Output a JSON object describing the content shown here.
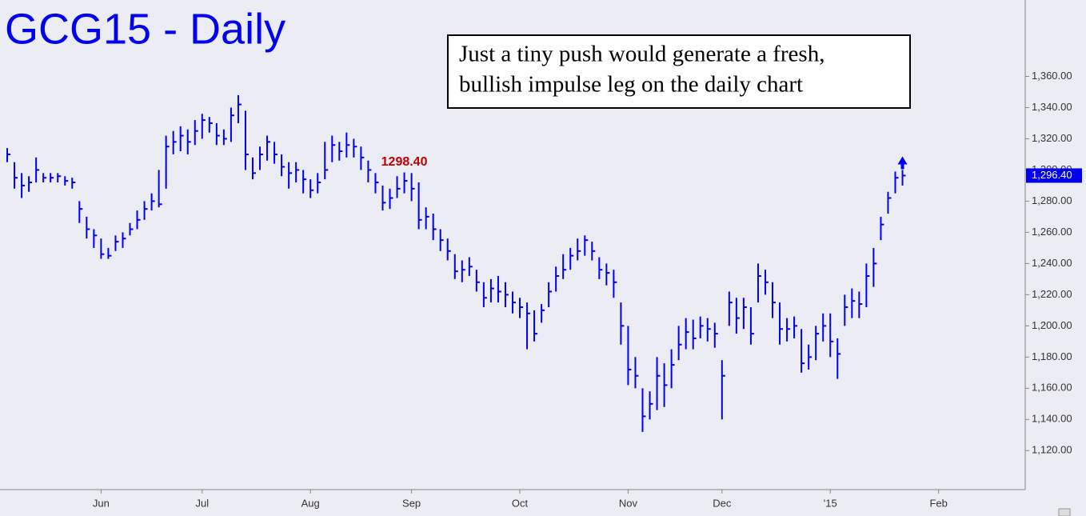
{
  "chart_data": {
    "type": "ohlc",
    "title": "GCG15 - Daily",
    "annotation_box": [
      "Just a tiny push would generate a fresh,",
      "bullish impulse leg on the daily chart"
    ],
    "color": "#0000ee",
    "high": [
      1314,
      1305,
      1298,
      1296,
      1308,
      1298,
      1298,
      1298,
      1296,
      1295,
      1280,
      1270,
      1262,
      1256,
      1250,
      1258,
      1260,
      1266,
      1274,
      1280,
      1285,
      1300,
      1322,
      1325,
      1328,
      1326,
      1332,
      1336,
      1334,
      1330,
      1326,
      1340,
      1348,
      1338,
      1308,
      1315,
      1322,
      1318,
      1310,
      1305,
      1305,
      1300,
      1294,
      1298,
      1318,
      1322,
      1318,
      1324,
      1320,
      1315,
      1306,
      1298,
      1290,
      1288,
      1296,
      1298.4,
      1298,
      1292,
      1276,
      1272,
      1262,
      1256,
      1246,
      1242,
      1244,
      1236,
      1228,
      1230,
      1232,
      1228,
      1222,
      1218,
      1215,
      1210,
      1214,
      1228,
      1238,
      1246,
      1250,
      1256,
      1258,
      1254,
      1244,
      1240,
      1236,
      1215,
      1200,
      1180,
      1160,
      1158,
      1180,
      1176,
      1185,
      1200,
      1205,
      1204,
      1206,
      1205,
      1202,
      1178,
      1222,
      1218,
      1218,
      1212,
      1240,
      1236,
      1228,
      1215,
      1205,
      1206,
      1198,
      1188,
      1200,
      1208,
      1208,
      1192,
      1220,
      1224,
      1222,
      1240,
      1250,
      1270,
      1286,
      1299,
      1300
    ],
    "low": [
      1305,
      1288,
      1282,
      1286,
      1292,
      1292,
      1292,
      1292,
      1290,
      1288,
      1266,
      1256,
      1250,
      1243,
      1243,
      1248,
      1250,
      1258,
      1262,
      1268,
      1274,
      1276,
      1288,
      1310,
      1312,
      1310,
      1316,
      1320,
      1324,
      1316,
      1316,
      1318,
      1330,
      1300,
      1294,
      1300,
      1306,
      1304,
      1296,
      1288,
      1292,
      1285,
      1282,
      1285,
      1294,
      1305,
      1306,
      1308,
      1308,
      1300,
      1292,
      1285,
      1274,
      1275,
      1282,
      1285,
      1280,
      1262,
      1262,
      1255,
      1248,
      1242,
      1230,
      1228,
      1232,
      1222,
      1212,
      1215,
      1215,
      1212,
      1208,
      1205,
      1185,
      1190,
      1202,
      1212,
      1222,
      1230,
      1236,
      1242,
      1245,
      1242,
      1230,
      1226,
      1218,
      1188,
      1162,
      1160,
      1132,
      1140,
      1146,
      1148,
      1160,
      1178,
      1185,
      1185,
      1192,
      1190,
      1186,
      1140,
      1200,
      1195,
      1198,
      1188,
      1215,
      1220,
      1205,
      1188,
      1190,
      1192,
      1170,
      1172,
      1178,
      1190,
      1180,
      1166,
      1200,
      1205,
      1205,
      1212,
      1225,
      1255,
      1272,
      1285,
      1290
    ],
    "close": [
      1310,
      1295,
      1290,
      1292,
      1300,
      1295,
      1295,
      1296,
      1293,
      1292,
      1275,
      1262,
      1258,
      1246,
      1245,
      1254,
      1256,
      1262,
      1268,
      1275,
      1280,
      1278,
      1315,
      1318,
      1322,
      1318,
      1325,
      1332,
      1330,
      1322,
      1320,
      1335,
      1342,
      1310,
      1298,
      1310,
      1318,
      1310,
      1302,
      1298,
      1300,
      1294,
      1287,
      1292,
      1300,
      1316,
      1312,
      1316,
      1315,
      1308,
      1300,
      1292,
      1279,
      1282,
      1288,
      1293,
      1288,
      1268,
      1270,
      1262,
      1255,
      1248,
      1235,
      1236,
      1238,
      1228,
      1218,
      1224,
      1222,
      1220,
      1215,
      1212,
      1208,
      1195,
      1210,
      1222,
      1232,
      1236,
      1245,
      1248,
      1255,
      1248,
      1236,
      1234,
      1228,
      1200,
      1172,
      1168,
      1142,
      1150,
      1168,
      1162,
      1175,
      1188,
      1196,
      1192,
      1200,
      1198,
      1195,
      1168,
      1215,
      1205,
      1212,
      1195,
      1232,
      1228,
      1215,
      1198,
      1198,
      1200,
      1176,
      1180,
      1195,
      1200,
      1190,
      1182,
      1212,
      1216,
      1214,
      1232,
      1240,
      1265,
      1282,
      1295,
      1296.4
    ],
    "annotation": {
      "index": 55,
      "value": 1298.4,
      "label": "1298.40"
    },
    "last_price": {
      "value": 1296.4,
      "label": "1,296.40"
    },
    "xlim": [
      -1,
      141
    ],
    "xticks": [
      {
        "value": 13,
        "label": "Jun"
      },
      {
        "value": 27,
        "label": "Jul"
      },
      {
        "value": 42,
        "label": "Aug"
      },
      {
        "value": 56,
        "label": "Sep"
      },
      {
        "value": 71,
        "label": "Oct"
      },
      {
        "value": 86,
        "label": "Nov"
      },
      {
        "value": 99,
        "label": "Dec"
      },
      {
        "value": 114,
        "label": "'15"
      },
      {
        "value": 129,
        "label": "Feb"
      }
    ],
    "ylim": [
      1095,
      1409
    ],
    "yticks": [
      {
        "value": 1120,
        "label": "1,120.00"
      },
      {
        "value": 1140,
        "label": "1,140.00"
      },
      {
        "value": 1160,
        "label": "1,160.00"
      },
      {
        "value": 1180,
        "label": "1,180.00"
      },
      {
        "value": 1200,
        "label": "1,200.00"
      },
      {
        "value": 1220,
        "label": "1,220.00"
      },
      {
        "value": 1240,
        "label": "1,240.00"
      },
      {
        "value": 1260,
        "label": "1,260.00"
      },
      {
        "value": 1280,
        "label": "1,280.00"
      },
      {
        "value": 1300,
        "label": "1,300.00"
      },
      {
        "value": 1320,
        "label": "1,320.00"
      },
      {
        "value": 1340,
        "label": "1,340.00"
      },
      {
        "value": 1360,
        "label": "1,360.00"
      }
    ]
  }
}
